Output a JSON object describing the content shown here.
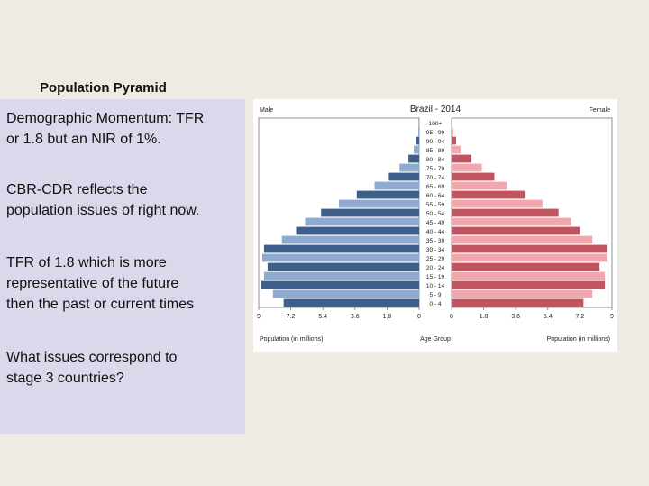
{
  "slide": {
    "title": "Population Pyramid",
    "paragraphs": [
      [
        "Demographic Momentum:  TFR",
        "or 1.8 but an NIR of 1%."
      ],
      [
        "CBR-CDR reflects the",
        "population issues of right now."
      ],
      [
        "TFR of 1.8 which is more",
        "representative of the future",
        "then the past or current times"
      ],
      [
        "What issues correspond to",
        "stage 3 countries?"
      ]
    ]
  },
  "colors": {
    "male_dark": "#3e5f8a",
    "male_light": "#8fabd0",
    "female_dark": "#c0545f",
    "female_light": "#f0a8ae",
    "background": "#eeebe2",
    "textbox": "#dcd7ea"
  },
  "chart_data": {
    "type": "bar",
    "title": "Brazil - 2014",
    "left_label": "Male",
    "right_label": "Female",
    "center_label": "Age Group",
    "xlabel_left": "Population (in millions)",
    "xlabel_right": "Population (in millions)",
    "x_ticks": [
      "9",
      "7.2",
      "5.4",
      "3.6",
      "1.8",
      "0"
    ],
    "x_ticks_right": [
      "0",
      "1.8",
      "3.6",
      "5.4",
      "7.2",
      "9"
    ],
    "xlim": [
      0,
      9
    ],
    "categories": [
      "100+",
      "95 - 99",
      "90 - 94",
      "85 - 89",
      "80 - 84",
      "75 - 79",
      "70 - 74",
      "65 - 69",
      "60 - 64",
      "55 - 59",
      "50 - 54",
      "45 - 49",
      "40 - 44",
      "35 - 39",
      "30 - 34",
      "25 - 29",
      "20 - 24",
      "15 - 19",
      "10 - 14",
      "5 - 9",
      "0 - 4"
    ],
    "series": [
      {
        "name": "Male",
        "values": [
          0.01,
          0.05,
          0.15,
          0.3,
          0.6,
          1.1,
          1.7,
          2.5,
          3.5,
          4.5,
          5.5,
          6.4,
          6.9,
          7.7,
          8.7,
          8.8,
          8.5,
          8.7,
          8.9,
          8.2,
          7.6
        ]
      },
      {
        "name": "Female",
        "values": [
          0.02,
          0.1,
          0.25,
          0.5,
          1.1,
          1.7,
          2.4,
          3.1,
          4.1,
          5.1,
          6.0,
          6.7,
          7.2,
          7.9,
          8.7,
          8.7,
          8.3,
          8.6,
          8.6,
          7.9,
          7.4
        ]
      }
    ]
  }
}
